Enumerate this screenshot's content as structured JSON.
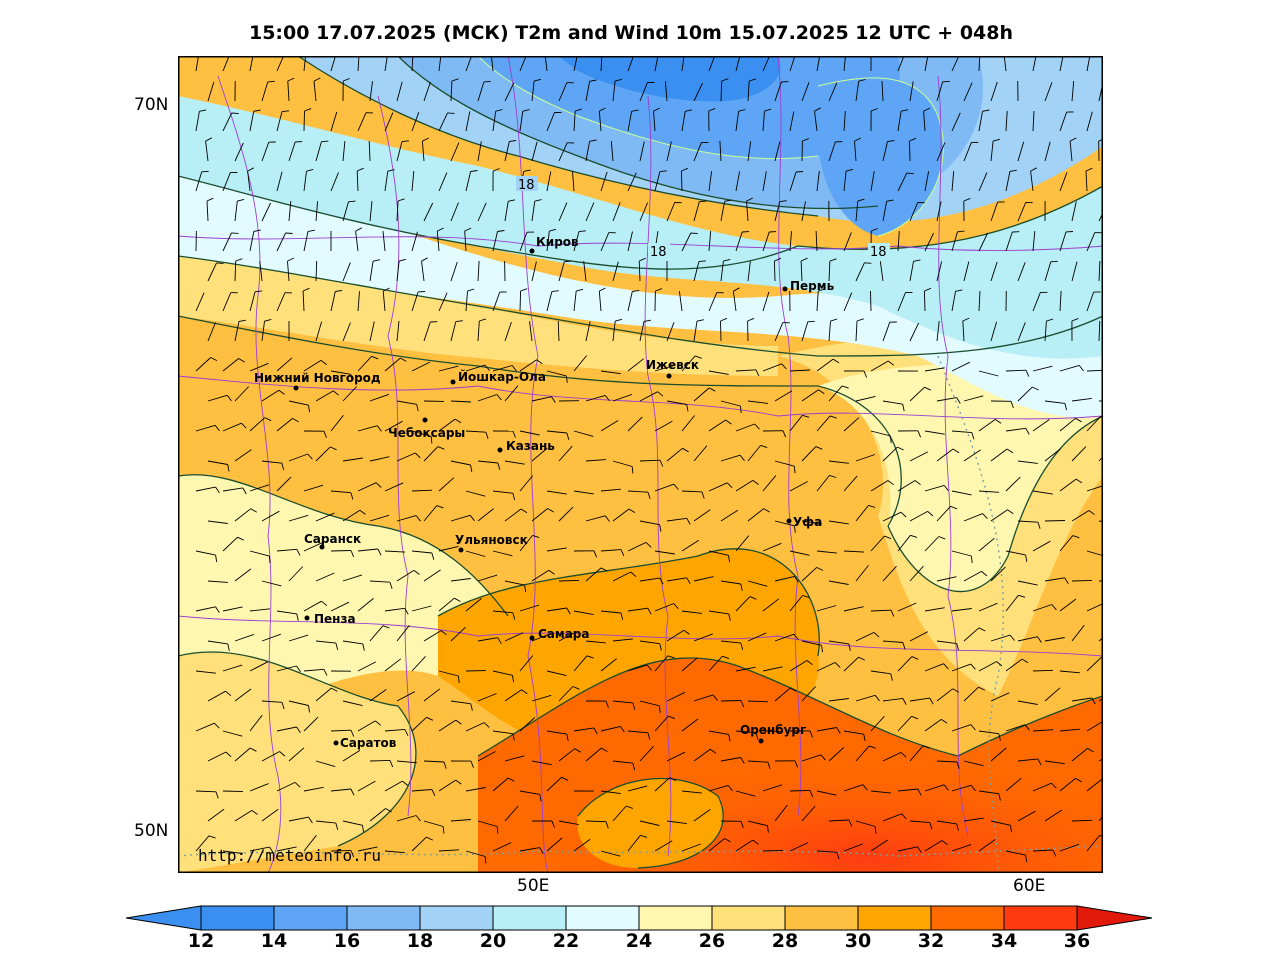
{
  "title": "15:00 17.07.2025 (МСК) T2m and Wind 10m 15.07.2025 12 UTC + 048h",
  "watermark": "http://meteoinfo.ru",
  "axes": {
    "lat_labels": [
      "70N",
      "50N"
    ],
    "lon_labels": [
      "50E",
      "60E"
    ]
  },
  "isotherm_labels": [
    "18",
    "18",
    "18"
  ],
  "cities": [
    {
      "name": "Киров"
    },
    {
      "name": "Пермь"
    },
    {
      "name": "Нижний Новгород"
    },
    {
      "name": "Йошкар-Ола"
    },
    {
      "name": "Ижевск"
    },
    {
      "name": "Чебоксары"
    },
    {
      "name": "Казань"
    },
    {
      "name": "Уфа"
    },
    {
      "name": "Саранск"
    },
    {
      "name": "Ульяновск"
    },
    {
      "name": "Пенза"
    },
    {
      "name": "Самара"
    },
    {
      "name": "Оренбург"
    },
    {
      "name": "Саратов"
    }
  ],
  "colorbar": {
    "labels": [
      "12",
      "14",
      "16",
      "18",
      "20",
      "22",
      "24",
      "26",
      "28",
      "30",
      "32",
      "34",
      "36"
    ],
    "colors": [
      "#2a7fe6",
      "#3a8ff0",
      "#5ea6f5",
      "#7fbaf5",
      "#a2d2f5",
      "#b8eef5",
      "#e2fbff",
      "#fff7b0",
      "#ffe07a",
      "#ffbf40",
      "#ffa500",
      "#ff6a00",
      "#ff3b12",
      "#e11a0c"
    ],
    "low_arrow_color": "#3a8ff0",
    "high_arrow_color": "#e11a0c"
  }
}
